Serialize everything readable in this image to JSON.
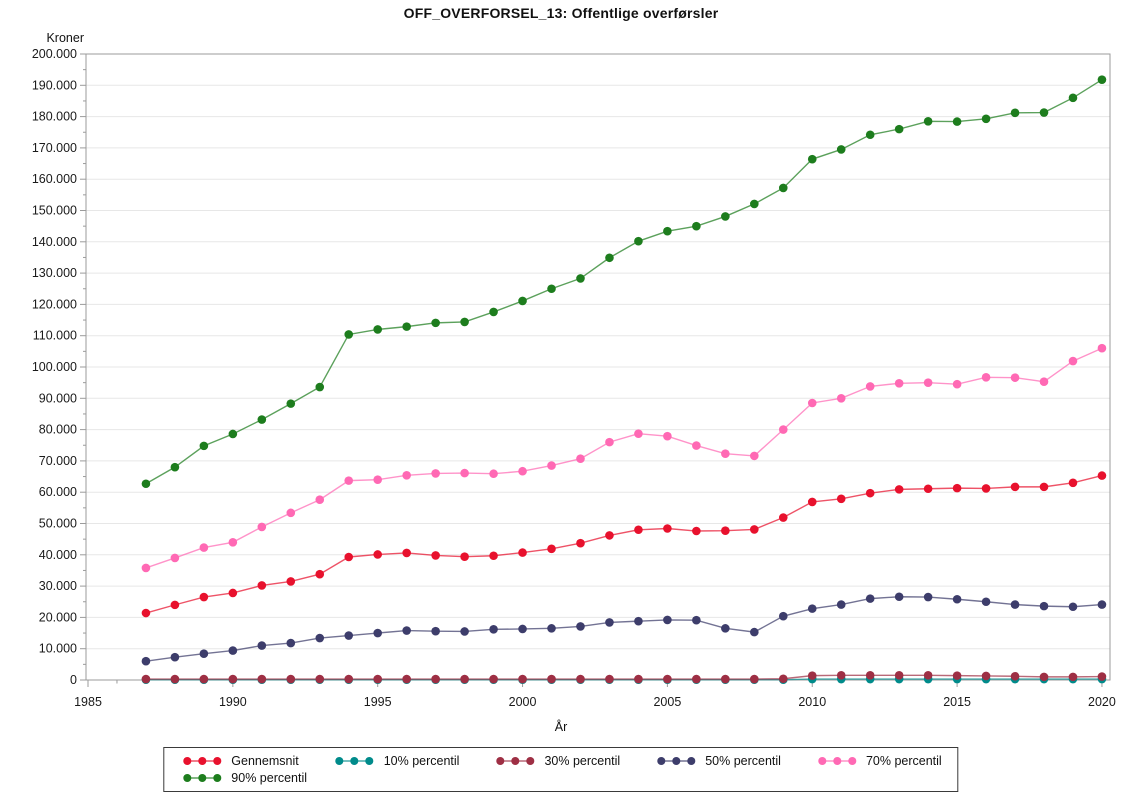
{
  "title": "OFF_OVERFORSEL_13: Offentlige overførsler",
  "chart_data": {
    "type": "line",
    "title": "OFF_OVERFORSEL_13: Offentlige overførsler",
    "xlabel": "År",
    "ylabel": "Kroner",
    "xlim": [
      1985,
      2020
    ],
    "ylim": [
      0,
      200000
    ],
    "x_tick_step": 5,
    "x_minor_tick_step": 1,
    "y_tick_step": 10000,
    "y_minor_tick_step": 5000,
    "grid": "horizontal",
    "legend_position": "bottom",
    "x": [
      1987,
      1988,
      1989,
      1990,
      1991,
      1992,
      1993,
      1994,
      1995,
      1996,
      1997,
      1998,
      1999,
      2000,
      2001,
      2002,
      2003,
      2004,
      2005,
      2006,
      2007,
      2008,
      2009,
      2010,
      2011,
      2012,
      2013,
      2014,
      2015,
      2016,
      2017,
      2018,
      2019,
      2020
    ],
    "series": [
      {
        "name": "Gennemsnit",
        "color": "#e8112d",
        "values": [
          21400,
          24000,
          26500,
          27800,
          30200,
          31500,
          33800,
          39300,
          40100,
          40600,
          39800,
          39400,
          39700,
          40700,
          41900,
          43700,
          46200,
          48000,
          48400,
          47600,
          47700,
          48100,
          51900,
          56900,
          57900,
          59700,
          60900,
          61100,
          61300,
          61200,
          61700,
          61700,
          63000,
          65300
        ]
      },
      {
        "name": "10% percentil",
        "color": "#008b8b",
        "values": [
          100,
          100,
          100,
          100,
          100,
          100,
          100,
          100,
          100,
          100,
          100,
          100,
          100,
          100,
          100,
          100,
          100,
          100,
          100,
          100,
          100,
          100,
          100,
          300,
          300,
          300,
          300,
          300,
          300,
          300,
          300,
          300,
          300,
          300
        ]
      },
      {
        "name": "30% percentil",
        "color": "#9e2f44",
        "values": [
          300,
          300,
          300,
          300,
          300,
          300,
          300,
          300,
          300,
          300,
          300,
          300,
          300,
          300,
          300,
          300,
          300,
          300,
          300,
          300,
          300,
          300,
          400,
          1400,
          1500,
          1500,
          1500,
          1500,
          1400,
          1300,
          1200,
          1000,
          1000,
          1100
        ]
      },
      {
        "name": "50% percentil",
        "color": "#3d3d6b",
        "values": [
          6000,
          7300,
          8400,
          9400,
          11000,
          11800,
          13400,
          14200,
          15000,
          15800,
          15600,
          15500,
          16200,
          16300,
          16500,
          17100,
          18400,
          18800,
          19200,
          19100,
          16500,
          15300,
          20400,
          22800,
          24100,
          26000,
          26600,
          26500,
          25800,
          25000,
          24100,
          23600,
          23400,
          24100
        ]
      },
      {
        "name": "70% percentil",
        "color": "#ff69b4",
        "values": [
          35800,
          39000,
          42300,
          44000,
          48900,
          53400,
          57600,
          63700,
          64000,
          65400,
          66000,
          66100,
          65900,
          66700,
          68500,
          70700,
          76000,
          78700,
          77900,
          74900,
          72300,
          71600,
          80000,
          88500,
          90000,
          93800,
          94800,
          95000,
          94500,
          96700,
          96600,
          95300,
          101900,
          106000
        ]
      },
      {
        "name": "90% percentil",
        "color": "#1d7d1d",
        "values": [
          62700,
          68000,
          74800,
          78600,
          83200,
          88300,
          93600,
          110400,
          112000,
          112900,
          114100,
          114400,
          117600,
          121100,
          125000,
          128300,
          134900,
          140200,
          143400,
          145000,
          148100,
          152100,
          157200,
          166400,
          169500,
          174200,
          176000,
          178500,
          178400,
          179300,
          181200,
          181300,
          186000,
          191800
        ]
      }
    ]
  },
  "legend": {
    "rows": [
      [
        "Gennemsnit",
        "10% percentil",
        "30% percentil",
        "50% percentil",
        "70% percentil"
      ],
      [
        "90% percentil"
      ]
    ]
  }
}
